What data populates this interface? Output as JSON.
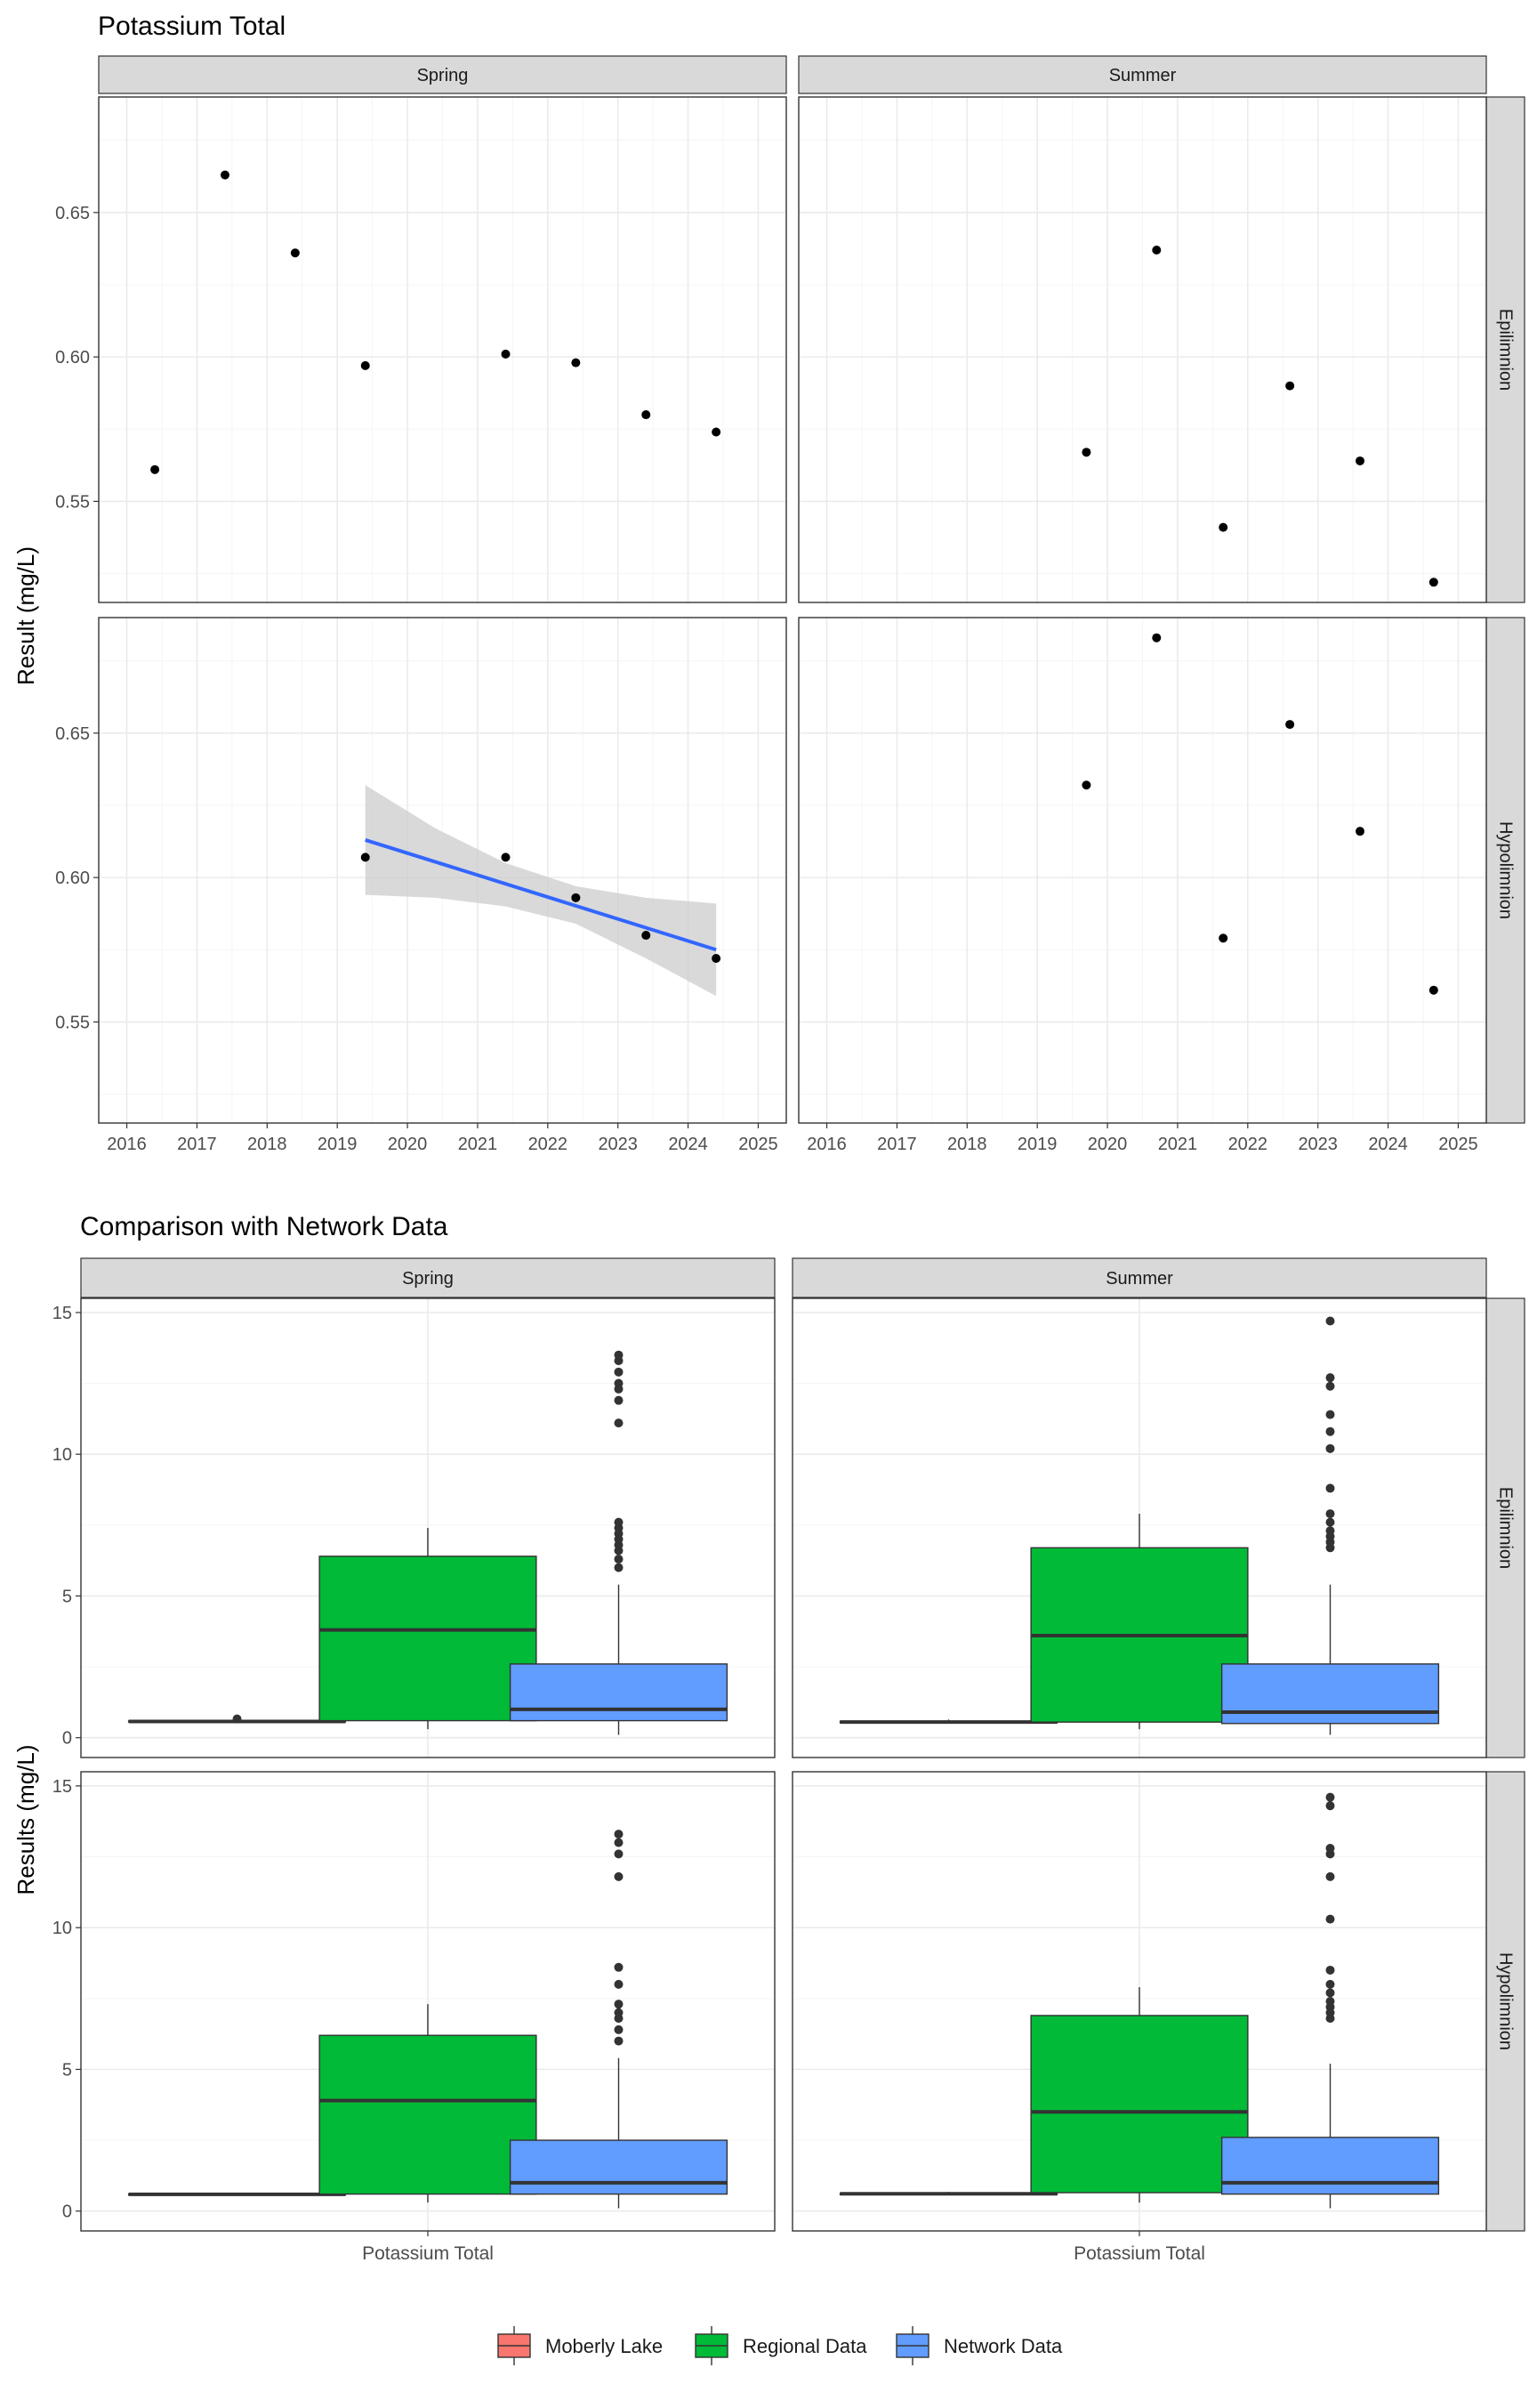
{
  "chart_data": [
    {
      "type": "scatter",
      "title": "Potassium Total",
      "xlabel": "",
      "ylabel": "Result (mg/L)",
      "x_ticks": [
        "2016",
        "2017",
        "2018",
        "2019",
        "2020",
        "2021",
        "2022",
        "2023",
        "2024",
        "2025"
      ],
      "y_ticks": [
        "0.55",
        "0.60",
        "0.65"
      ],
      "xlim": [
        2015.6,
        2025.4
      ],
      "ylim": [
        0.515,
        0.69
      ],
      "grid": true,
      "column_facets": [
        "Spring",
        "Summer"
      ],
      "row_facets": [
        "Epilimnion",
        "Hypolimnion"
      ],
      "panels": [
        {
          "season": "Spring",
          "layer": "Epilimnion",
          "points": [
            {
              "x": 2016.4,
              "y": 0.561
            },
            {
              "x": 2017.4,
              "y": 0.663
            },
            {
              "x": 2018.4,
              "y": 0.636
            },
            {
              "x": 2019.4,
              "y": 0.597
            },
            {
              "x": 2021.4,
              "y": 0.601
            },
            {
              "x": 2022.4,
              "y": 0.598
            },
            {
              "x": 2023.4,
              "y": 0.58
            },
            {
              "x": 2024.4,
              "y": 0.574
            }
          ]
        },
        {
          "season": "Summer",
          "layer": "Epilimnion",
          "points": [
            {
              "x": 2019.7,
              "y": 0.567
            },
            {
              "x": 2020.7,
              "y": 0.637
            },
            {
              "x": 2021.65,
              "y": 0.541
            },
            {
              "x": 2022.6,
              "y": 0.59
            },
            {
              "x": 2023.6,
              "y": 0.564
            },
            {
              "x": 2024.65,
              "y": 0.522
            }
          ]
        },
        {
          "season": "Spring",
          "layer": "Hypolimnion",
          "points": [
            {
              "x": 2019.4,
              "y": 0.607
            },
            {
              "x": 2021.4,
              "y": 0.607
            },
            {
              "x": 2022.4,
              "y": 0.593
            },
            {
              "x": 2023.4,
              "y": 0.58
            },
            {
              "x": 2024.4,
              "y": 0.572
            }
          ],
          "trend": {
            "x": [
              2019.4,
              2024.4
            ],
            "y": [
              0.613,
              0.575
            ],
            "upper": [
              {
                "x": 2019.4,
                "y": 0.632
              },
              {
                "x": 2020.4,
                "y": 0.617
              },
              {
                "x": 2021.4,
                "y": 0.605
              },
              {
                "x": 2022.4,
                "y": 0.597
              },
              {
                "x": 2023.4,
                "y": 0.593
              },
              {
                "x": 2024.4,
                "y": 0.591
              }
            ],
            "lower": [
              {
                "x": 2019.4,
                "y": 0.594
              },
              {
                "x": 2020.4,
                "y": 0.593
              },
              {
                "x": 2021.4,
                "y": 0.59
              },
              {
                "x": 2022.4,
                "y": 0.584
              },
              {
                "x": 2023.4,
                "y": 0.572
              },
              {
                "x": 2024.4,
                "y": 0.559
              }
            ],
            "line_color": "#3366FF",
            "band_color": "#CCCCCC"
          }
        },
        {
          "season": "Summer",
          "layer": "Hypolimnion",
          "points": [
            {
              "x": 2019.7,
              "y": 0.632
            },
            {
              "x": 2020.7,
              "y": 0.683
            },
            {
              "x": 2021.65,
              "y": 0.579
            },
            {
              "x": 2022.6,
              "y": 0.653
            },
            {
              "x": 2023.6,
              "y": 0.616
            },
            {
              "x": 2024.65,
              "y": 0.561
            }
          ]
        }
      ]
    },
    {
      "type": "box",
      "title": "Comparison with Network Data",
      "xlabel": "",
      "ylabel": "Results (mg/L)",
      "category": "Potassium Total",
      "y_ticks": [
        "0",
        "5",
        "10",
        "15"
      ],
      "ylim": [
        -0.7,
        15.5
      ],
      "grid": true,
      "column_facets": [
        "Spring",
        "Summer"
      ],
      "row_facets": [
        "Epilimnion",
        "Hypolimnion"
      ],
      "legend": {
        "placement": "bottom",
        "items": [
          {
            "name": "Moberly Lake",
            "color": "#F8766D"
          },
          {
            "name": "Regional Data",
            "color": "#00BA38"
          },
          {
            "name": "Network Data",
            "color": "#619CFF"
          }
        ]
      },
      "panels": [
        {
          "season": "Spring",
          "layer": "Epilimnion",
          "boxes": [
            {
              "group": "Moberly Lake",
              "min": 0.56,
              "q1": 0.56,
              "median": 0.57,
              "q3": 0.59,
              "max": 0.62,
              "outliers": [
                0.66
              ]
            },
            {
              "group": "Regional Data",
              "min": 0.3,
              "q1": 0.6,
              "median": 3.8,
              "q3": 6.4,
              "max": 7.4,
              "outliers": []
            },
            {
              "group": "Network Data",
              "min": 0.1,
              "q1": 0.6,
              "median": 1.0,
              "q3": 2.6,
              "max": 5.4,
              "outliers": [
                6.0,
                6.3,
                6.6,
                6.8,
                7.0,
                7.2,
                7.4,
                7.6,
                11.1,
                11.9,
                12.3,
                12.5,
                12.9,
                13.3,
                13.5
              ]
            }
          ]
        },
        {
          "season": "Summer",
          "layer": "Epilimnion",
          "boxes": [
            {
              "group": "Moberly Lake",
              "min": 0.52,
              "q1": 0.52,
              "median": 0.55,
              "q3": 0.58,
              "max": 0.64,
              "outliers": []
            },
            {
              "group": "Regional Data",
              "min": 0.3,
              "q1": 0.55,
              "median": 3.6,
              "q3": 6.7,
              "max": 7.9,
              "outliers": []
            },
            {
              "group": "Network Data",
              "min": 0.1,
              "q1": 0.5,
              "median": 0.9,
              "q3": 2.6,
              "max": 5.4,
              "outliers": [
                6.7,
                6.9,
                7.1,
                7.3,
                7.6,
                7.9,
                8.8,
                10.2,
                10.8,
                11.4,
                12.4,
                12.7,
                14.7
              ]
            }
          ]
        },
        {
          "season": "Spring",
          "layer": "Hypolimnion",
          "boxes": [
            {
              "group": "Moberly Lake",
              "min": 0.57,
              "q1": 0.58,
              "median": 0.59,
              "q3": 0.6,
              "max": 0.61,
              "outliers": []
            },
            {
              "group": "Regional Data",
              "min": 0.3,
              "q1": 0.6,
              "median": 3.9,
              "q3": 6.2,
              "max": 7.3,
              "outliers": []
            },
            {
              "group": "Network Data",
              "min": 0.1,
              "q1": 0.6,
              "median": 1.0,
              "q3": 2.5,
              "max": 5.4,
              "outliers": [
                6.0,
                6.4,
                6.8,
                7.0,
                7.3,
                8.0,
                8.6,
                11.8,
                12.6,
                13.0,
                13.3
              ]
            }
          ]
        },
        {
          "season": "Summer",
          "layer": "Hypolimnion",
          "boxes": [
            {
              "group": "Moberly Lake",
              "min": 0.56,
              "q1": 0.58,
              "median": 0.61,
              "q3": 0.63,
              "max": 0.68,
              "outliers": []
            },
            {
              "group": "Regional Data",
              "min": 0.3,
              "q1": 0.65,
              "median": 3.5,
              "q3": 6.9,
              "max": 7.9,
              "outliers": []
            },
            {
              "group": "Network Data",
              "min": 0.1,
              "q1": 0.6,
              "median": 1.0,
              "q3": 2.6,
              "max": 5.2,
              "outliers": [
                6.8,
                7.0,
                7.2,
                7.4,
                7.7,
                8.0,
                8.5,
                10.3,
                11.8,
                12.6,
                12.8,
                14.3,
                14.6
              ]
            }
          ]
        }
      ]
    }
  ]
}
